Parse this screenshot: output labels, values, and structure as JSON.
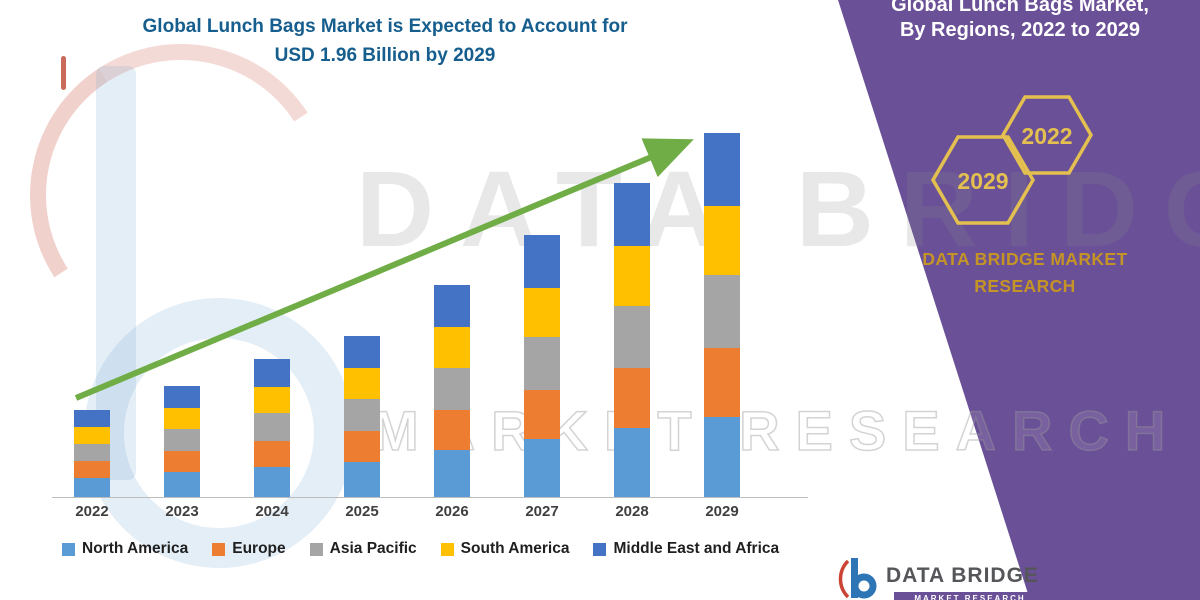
{
  "header": {
    "line1": "Global Lunch Bags Market is Expected to Account for",
    "line2": "USD 1.96 Billion by 2029"
  },
  "watermark": {
    "line1": "DATA BRIDGE",
    "line2": "MARKET RESEARCH"
  },
  "panel": {
    "title_line1": "Global Lunch Bags Market,",
    "title_line2": "By Regions, 2022 to 2029",
    "hex_back_label": "2029",
    "hex_front_label": "2022",
    "brand_line1": "DATA BRIDGE MARKET",
    "brand_line2": "RESEARCH",
    "purple": "#6A5096",
    "gold": "#D9B64A",
    "brand_gold": "#C59426"
  },
  "footer_logo": {
    "name": "DATA BRIDGE",
    "sub": "MARKET RESEARCH"
  },
  "chart_data": {
    "type": "bar",
    "stacked": true,
    "title": "Global Lunch Bags Market is Expected to Account for USD 1.96 Billion by 2029",
    "unit": "USD Billion",
    "categories": [
      "2022",
      "2023",
      "2024",
      "2025",
      "2026",
      "2027",
      "2028",
      "2029"
    ],
    "totals": [
      0.47,
      0.6,
      0.74,
      0.87,
      1.14,
      1.41,
      1.69,
      1.96
    ],
    "series": [
      {
        "name": "North America",
        "color": "#5B9BD5",
        "values": [
          0.103,
          0.132,
          0.163,
          0.191,
          0.251,
          0.31,
          0.372,
          0.431
        ]
      },
      {
        "name": "Europe",
        "color": "#ED7D31",
        "values": [
          0.089,
          0.114,
          0.141,
          0.165,
          0.217,
          0.268,
          0.321,
          0.372
        ]
      },
      {
        "name": "Asia Pacific",
        "color": "#A5A5A5",
        "values": [
          0.094,
          0.12,
          0.148,
          0.174,
          0.228,
          0.282,
          0.338,
          0.392
        ]
      },
      {
        "name": "South America",
        "color": "#FFC000",
        "values": [
          0.089,
          0.114,
          0.141,
          0.165,
          0.217,
          0.268,
          0.321,
          0.372
        ]
      },
      {
        "name": "Middle East and Africa",
        "color": "#4472C4",
        "values": [
          0.094,
          0.12,
          0.148,
          0.174,
          0.228,
          0.282,
          0.338,
          0.392
        ]
      }
    ],
    "ylim": [
      0,
      2.0
    ],
    "grid": false,
    "y_axis_visible": false,
    "legend_position": "bottom",
    "trend_arrow": true,
    "trend_arrow_color": "#70AD47"
  }
}
